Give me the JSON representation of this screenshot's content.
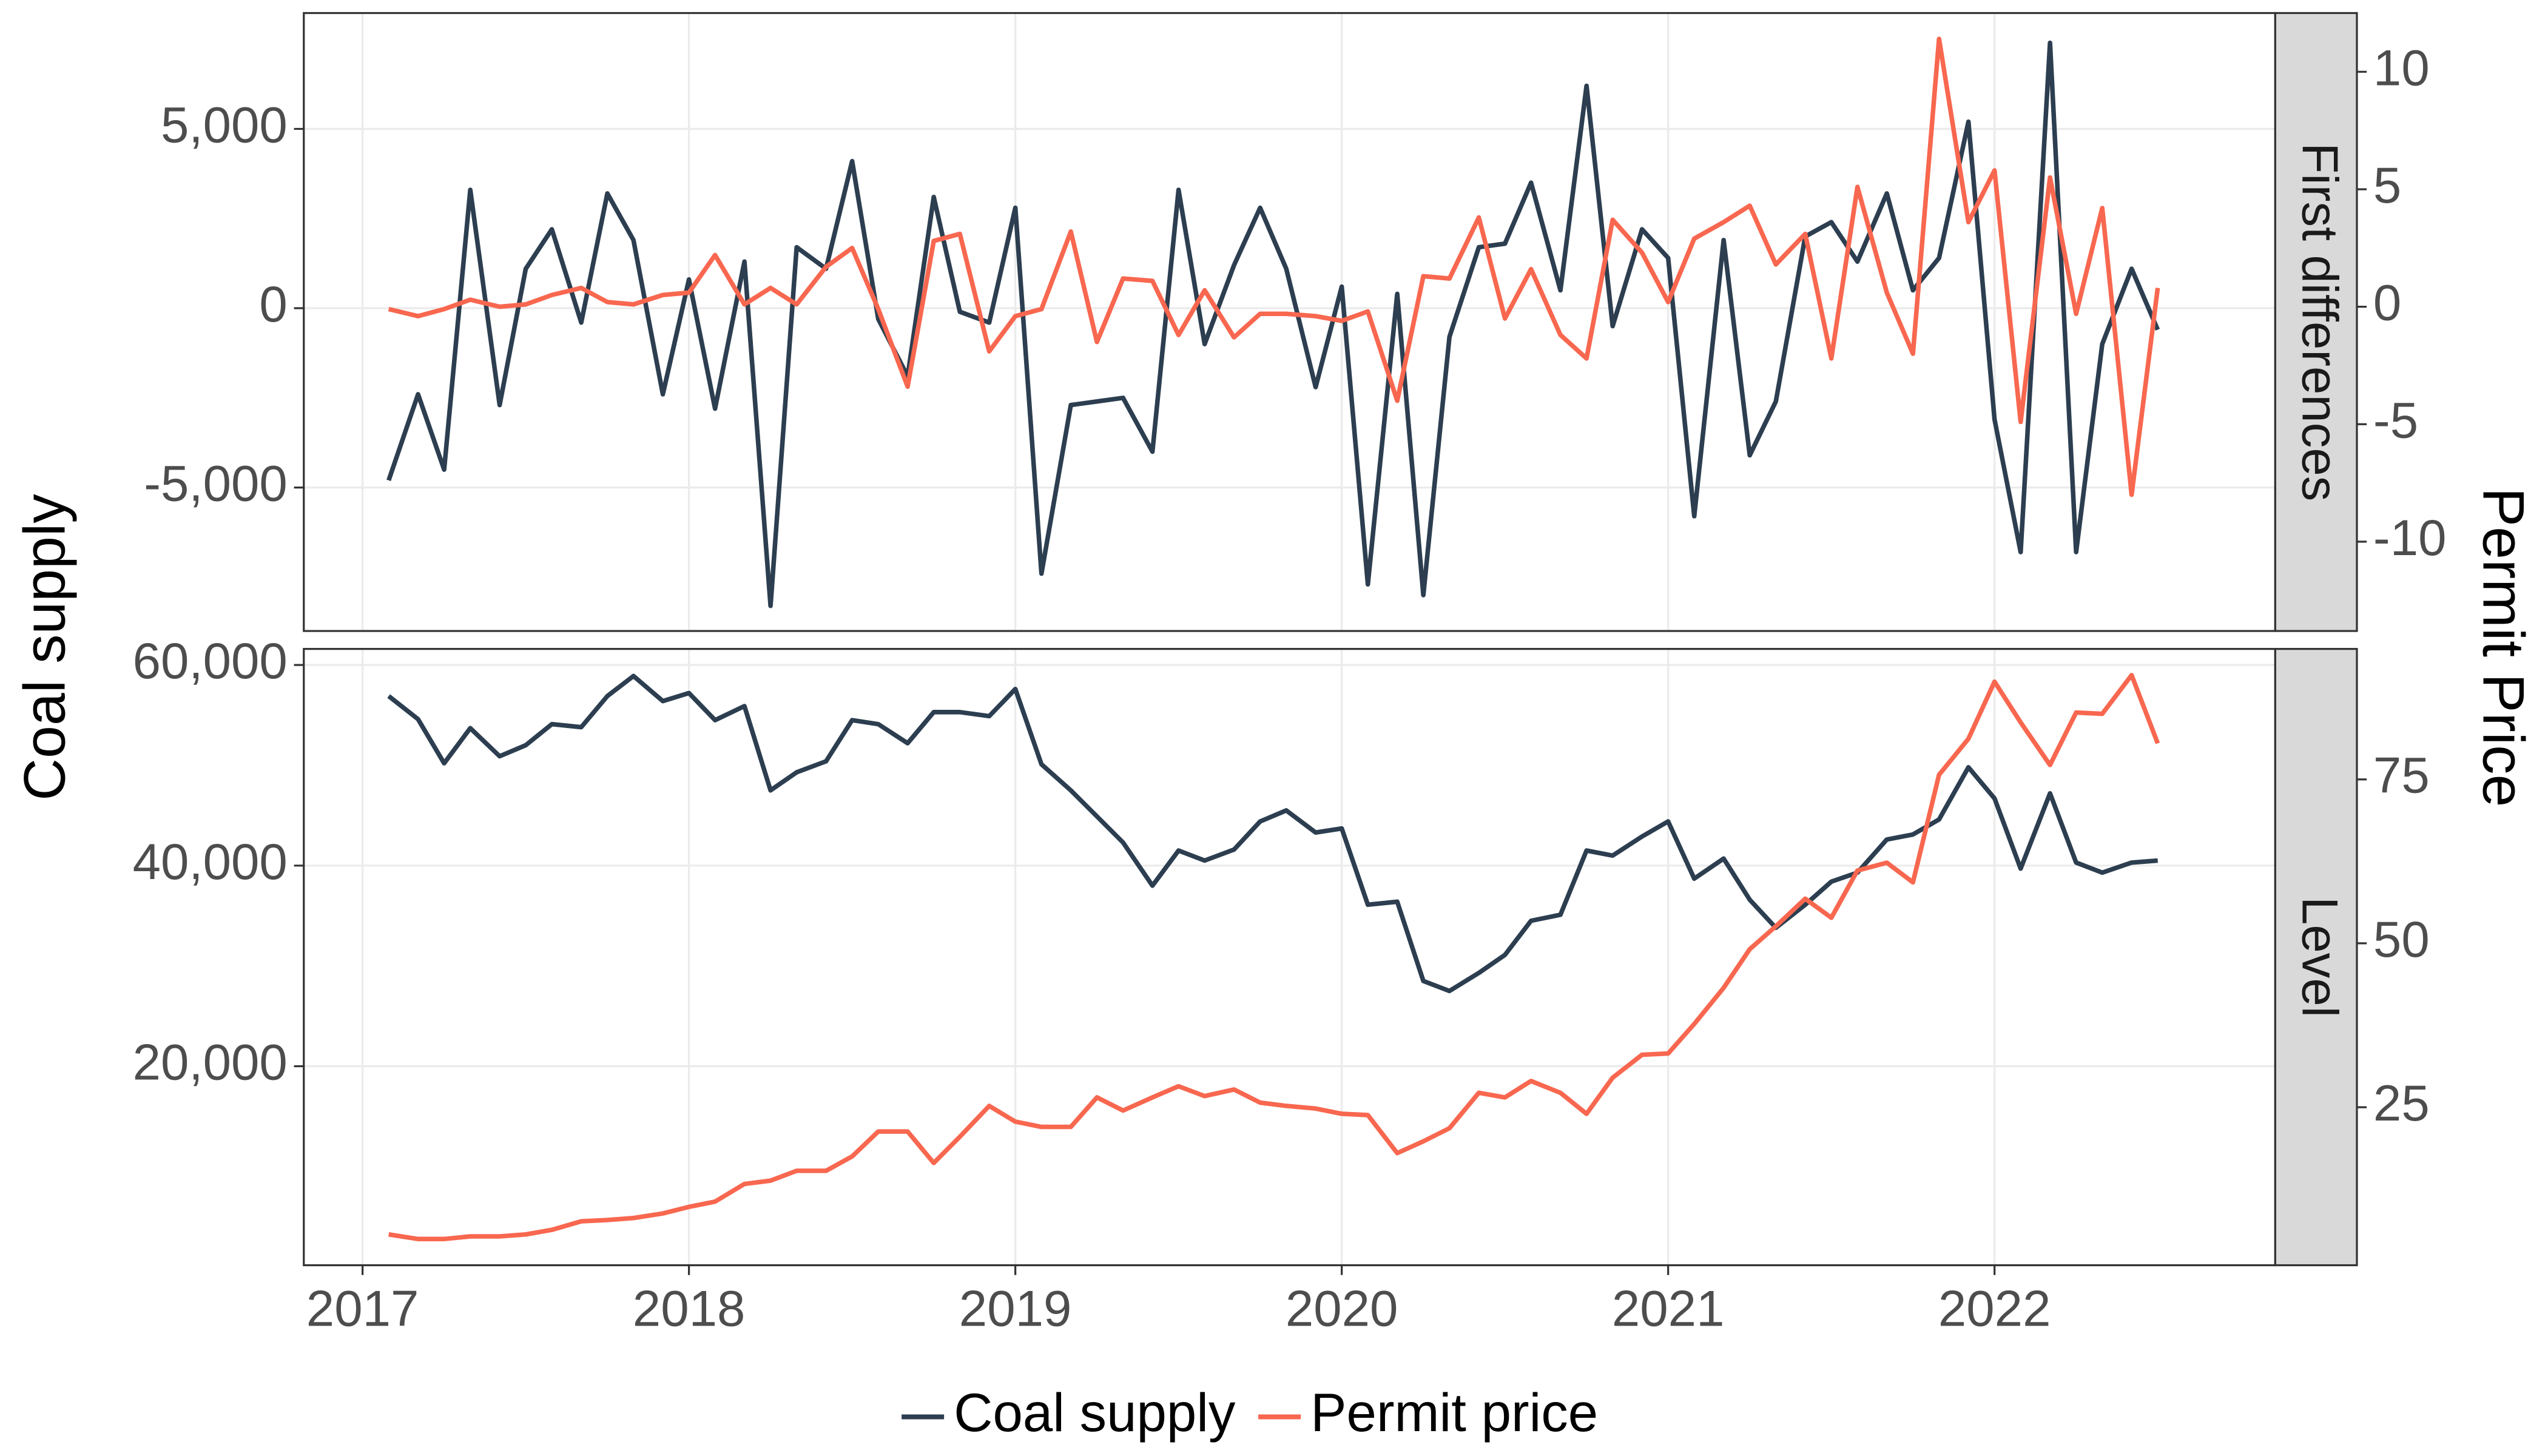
{
  "chart_data": {
    "type": "line",
    "ylabel": "Coal supply",
    "y2label": "Permit Price",
    "grid": true,
    "legend": "bottom",
    "series": [
      {
        "name": "Coal supply",
        "color": "#2c3e50",
        "axis": "y"
      },
      {
        "name": "Permit price",
        "color": "#f8674f",
        "axis": "y2"
      }
    ],
    "x": [
      2017.08,
      2017.17,
      2017.25,
      2017.33,
      2017.42,
      2017.5,
      2017.58,
      2017.67,
      2017.75,
      2017.83,
      2017.92,
      2018,
      2018.08,
      2018.17,
      2018.25,
      2018.33,
      2018.42,
      2018.5,
      2018.58,
      2018.67,
      2018.75,
      2018.83,
      2018.92,
      2019,
      2019.08,
      2019.17,
      2019.25,
      2019.33,
      2019.42,
      2019.5,
      2019.58,
      2019.67,
      2019.75,
      2019.83,
      2019.92,
      2020,
      2020.08,
      2020.17,
      2020.25,
      2020.33,
      2020.42,
      2020.5,
      2020.58,
      2020.67,
      2020.75,
      2020.83,
      2020.92,
      2021,
      2021.08,
      2021.17,
      2021.25,
      2021.33,
      2021.42,
      2021.5,
      2021.58,
      2021.67,
      2021.75,
      2021.83,
      2021.92,
      2022,
      2022.08,
      2022.17,
      2022.25,
      2022.33,
      2022.42,
      2022.5
    ],
    "xlim": [
      2016.82,
      2022.86
    ],
    "xticks": [
      2017,
      2018,
      2019,
      2020,
      2021,
      2022
    ],
    "panels": [
      {
        "strip": "First differences",
        "ylim": [
          -9000,
          8230
        ],
        "yticks": [
          {
            "value": -5000,
            "label": "-5,000"
          },
          0,
          {
            "value": 5000,
            "label": "5,000"
          }
        ],
        "y2lim": [
          -13.8,
          12.5
        ],
        "y2ticks": [
          -10,
          -5,
          0,
          5,
          10
        ],
        "series": [
          {
            "values": [
              -4800,
              -2400,
              -4500,
              3300,
              -2700,
              1100,
              2200,
              -400,
              3200,
              1900,
              -2400,
              800,
              -2800,
              1300,
              -8300,
              1700,
              1100,
              4100,
              -300,
              -1900,
              3100,
              -100,
              -400,
              2800,
              -7400,
              -2700,
              -2600,
              -2500,
              -4000,
              3300,
              -1000,
              1200,
              2800,
              1100,
              -2200,
              600,
              -7700,
              400,
              -8000,
              -800,
              1700,
              1800,
              3500,
              500,
              6200,
              -500,
              2200,
              1400,
              -5800,
              1900,
              -4100,
              -2600,
              2000,
              2400,
              1300,
              3200,
              500,
              1400,
              5200,
              -3100,
              -6800,
              7400,
              -6800,
              -1000,
              1100,
              -600
            ]
          },
          {
            "axis": "y2",
            "values": [
              -0.1,
              -0.4,
              -0.1,
              0.3,
              0,
              0.1,
              0.5,
              0.8,
              0.2,
              0.1,
              0.5,
              0.6,
              2.2,
              0.1,
              0.8,
              0.1,
              1.7,
              2.5,
              -0.1,
              -3.4,
              2.8,
              3.1,
              -1.9,
              -0.4,
              -0.1,
              3.2,
              -1.5,
              1.2,
              1.1,
              -1.2,
              0.7,
              -1.3,
              -0.3,
              -0.3,
              -0.4,
              -0.6,
              -0.2,
              -4.0,
              1.3,
              1.2,
              3.8,
              -0.5,
              1.6,
              -1.2,
              -2.2,
              3.7,
              2.3,
              0.2,
              2.9,
              3.6,
              4.3,
              1.8,
              3.1,
              -2.2,
              5.1,
              0.6,
              -2.0,
              11.4,
              3.6,
              5.8,
              -4.9,
              5.5,
              -0.3,
              4.2,
              -8.0,
              0.8
            ]
          }
        ]
      },
      {
        "strip": "Level",
        "ylim": [
          160,
          61600
        ],
        "yticks": [
          {
            "value": 20000,
            "label": "20,000"
          },
          {
            "value": 40000,
            "label": "40,000"
          },
          {
            "value": 60000,
            "label": "60,000"
          }
        ],
        "y2lim": [
          0.9,
          94.9
        ],
        "y2ticks": [
          25,
          50,
          75
        ],
        "series": [
          {
            "values": [
              56900,
              54600,
              50200,
              53700,
              50900,
              52000,
              54100,
              53800,
              56900,
              58900,
              56400,
              57200,
              54500,
              55900,
              47500,
              49300,
              50400,
              54500,
              54100,
              52200,
              55300,
              55300,
              54900,
              57600,
              50100,
              47500,
              44900,
              42300,
              38000,
              41500,
              40500,
              41600,
              44400,
              45500,
              43300,
              43700,
              36100,
              36400,
              28500,
              27500,
              29300,
              31100,
              34500,
              35100,
              41500,
              41000,
              42900,
              44400,
              38700,
              40700,
              36600,
              33800,
              36100,
              38400,
              39300,
              42600,
              43100,
              44600,
              49800,
              46700,
              39700,
              47200,
              40300,
              39300,
              40300,
              40500
            ]
          },
          {
            "axis": "y2",
            "values": [
              5.6,
              4.9,
              4.9,
              5.3,
              5.3,
              5.6,
              6.3,
              7.6,
              7.8,
              8.1,
              8.8,
              9.8,
              10.6,
              13.3,
              13.8,
              15.3,
              15.3,
              17.5,
              21.3,
              21.3,
              16.5,
              20.5,
              25.2,
              22.8,
              22.0,
              22.0,
              26.5,
              24.5,
              26.5,
              28.2,
              26.7,
              27.7,
              25.7,
              25.2,
              24.8,
              24.0,
              23.8,
              18.0,
              19.8,
              21.8,
              27.2,
              26.5,
              29.0,
              27.2,
              24.0,
              29.5,
              33.0,
              33.2,
              37.7,
              43.2,
              49.1,
              52.6,
              56.8,
              53.9,
              61.1,
              62.3,
              59.3,
              75.7,
              81.2,
              89.9,
              83.7,
              77.2,
              85.2,
              85.0,
              90.9,
              80.5
            ]
          }
        ]
      }
    ]
  }
}
